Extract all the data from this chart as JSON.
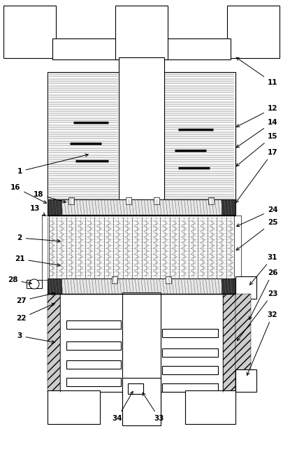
{
  "bg_color": "#ffffff",
  "fig_width": 4.05,
  "fig_height": 6.46,
  "dpi": 100
}
